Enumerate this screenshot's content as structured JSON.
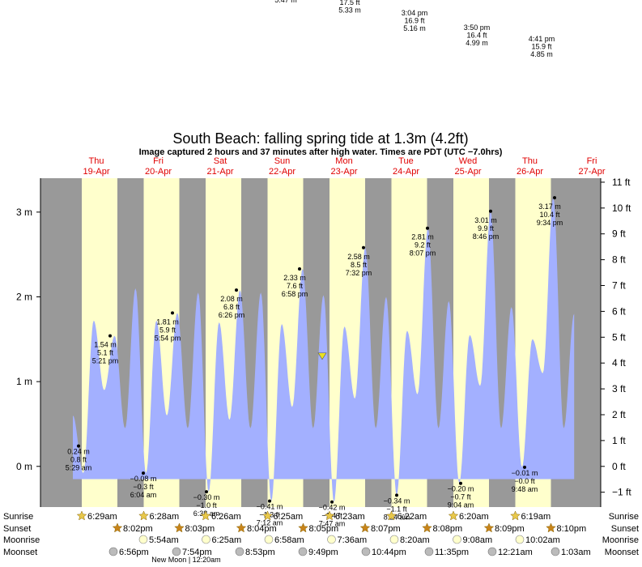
{
  "title": "South Beach: falling  spring tide at 1.3m (4.2ft)",
  "subtitle": "Image captured 2 hours and 37 minutes after high water. Times are PDT (UTC −7.0hrs)",
  "colors": {
    "night": "#999999",
    "day": "#ffffcc",
    "tide_fill": "#a3b0ff",
    "day_label": "#e00000",
    "sun_star": "#e8c84a",
    "sunset_star": "#c8841a",
    "moon_circle": "#ffffcc",
    "moonset_circle": "#bbbbbb",
    "current_marker": "#e8e020"
  },
  "top_overflow": [
    {
      "lines": [
        "5.47 m"
      ]
    },
    {
      "lines": [
        "17.5 ft",
        "5.33 m"
      ]
    },
    {
      "lines": [
        "3:04 pm",
        "16.9 ft",
        "5.16 m"
      ]
    },
    {
      "lines": [
        "3:50 pm",
        "16.4 ft",
        "4.99 m"
      ]
    },
    {
      "lines": [
        "4:41 pm",
        "15.9 ft",
        "4.85 m"
      ]
    }
  ],
  "chart_data": {
    "type": "area",
    "title": "South Beach: falling  spring tide at 1.3m (4.2ft)",
    "ylabel_left_unit": "m",
    "ylabel_right_unit": "ft",
    "ylim_m": [
      -0.48,
      3.4
    ],
    "yticks_m": [
      0,
      1,
      2,
      3
    ],
    "yticks_ft": [
      -1,
      0,
      1,
      2,
      3,
      4,
      5,
      6,
      7,
      8,
      9,
      10,
      11
    ],
    "days": [
      {
        "weekday": "Thu",
        "date": "19-Apr"
      },
      {
        "weekday": "Fri",
        "date": "20-Apr"
      },
      {
        "weekday": "Sat",
        "date": "21-Apr"
      },
      {
        "weekday": "Sun",
        "date": "22-Apr"
      },
      {
        "weekday": "Mon",
        "date": "23-Apr"
      },
      {
        "weekday": "Tue",
        "date": "24-Apr"
      },
      {
        "weekday": "Wed",
        "date": "25-Apr"
      },
      {
        "weekday": "Thu",
        "date": "26-Apr"
      },
      {
        "weekday": "Fri",
        "date": "27-Apr"
      }
    ],
    "series": [
      {
        "values_m": [
          0.6,
          -0.08,
          1.72,
          0.9,
          1.54,
          0.45,
          2.1,
          -0.08,
          1.72,
          0.6,
          1.81,
          0.45,
          2.05,
          -0.3,
          1.7,
          0.55,
          2.08,
          0.45,
          2.05,
          -0.41,
          1.68,
          0.7,
          2.33,
          0.45,
          2.02,
          -0.42,
          1.65,
          0.8,
          2.58,
          0.45,
          2.0,
          -0.34,
          1.6,
          0.85,
          2.81,
          0.45,
          1.95,
          -0.2,
          1.55,
          0.95,
          3.01,
          0.45,
          1.88,
          -0.01,
          1.5,
          1.1,
          3.17,
          0.45,
          1.8
        ]
      }
    ],
    "extremes": [
      {
        "m": "0.24 m",
        "ft": "0.8 ft",
        "time": "5:29 am",
        "value": 0.24,
        "kind": "low"
      },
      {
        "m": "1.54 m",
        "ft": "5.1 ft",
        "time": "5:21 pm",
        "value": 1.54,
        "kind": "high"
      },
      {
        "m": "−0.08 m",
        "ft": "−0.3 ft",
        "time": "6:04 am",
        "value": -0.08,
        "kind": "low"
      },
      {
        "m": "1.81 m",
        "ft": "5.9 ft",
        "time": "5:54 pm",
        "value": 1.81,
        "kind": "high"
      },
      {
        "m": "−0.30 m",
        "ft": "−1.0 ft",
        "time": "6:38 am",
        "value": -0.3,
        "kind": "low"
      },
      {
        "m": "2.08 m",
        "ft": "6.8 ft",
        "time": "6:26 pm",
        "value": 2.08,
        "kind": "high"
      },
      {
        "m": "−0.41 m",
        "ft": "−1.3 ft",
        "time": "7:12 am",
        "value": -0.41,
        "kind": "low"
      },
      {
        "m": "2.33 m",
        "ft": "7.6 ft",
        "time": "6:58 pm",
        "value": 2.33,
        "kind": "high"
      },
      {
        "m": "−0.42 m",
        "ft": "−1.4 ft",
        "time": "7:47 am",
        "value": -0.42,
        "kind": "low"
      },
      {
        "m": "2.58 m",
        "ft": "8.5 ft",
        "time": "7:32 pm",
        "value": 2.58,
        "kind": "high"
      },
      {
        "m": "−0.34 m",
        "ft": "−1.1 ft",
        "time": "8:24 am",
        "value": -0.34,
        "kind": "low"
      },
      {
        "m": "2.81 m",
        "ft": "9.2 ft",
        "time": "8:07 pm",
        "value": 2.81,
        "kind": "high"
      },
      {
        "m": "−0.20 m",
        "ft": "−0.7 ft",
        "time": "9:04 am",
        "value": -0.2,
        "kind": "low"
      },
      {
        "m": "3.01 m",
        "ft": "9.9 ft",
        "time": "8:46 pm",
        "value": 3.01,
        "kind": "high"
      },
      {
        "m": "−0.01 m",
        "ft": "−0.0 ft",
        "time": "9:48 am",
        "value": -0.01,
        "kind": "low"
      },
      {
        "m": "3.17 m",
        "ft": "10.4 ft",
        "time": "9:34 pm",
        "value": 3.17,
        "kind": "high"
      }
    ],
    "current_level_m": 1.3,
    "rows": {
      "sunrise": {
        "label": "Sunrise",
        "times": [
          "6:29am",
          "6:28am",
          "6:26am",
          "6:25am",
          "6:23am",
          "6:22am",
          "6:20am",
          "6:19am"
        ]
      },
      "sunset": {
        "label": "Sunset",
        "times": [
          "8:02pm",
          "8:03pm",
          "8:04pm",
          "8:05pm",
          "8:07pm",
          "8:08pm",
          "8:09pm",
          "8:10pm"
        ]
      },
      "moonrise": {
        "label": "Moonrise",
        "times": [
          "5:54am",
          "6:25am",
          "6:58am",
          "7:36am",
          "8:20am",
          "9:08am",
          "10:02am"
        ]
      },
      "moonset": {
        "label": "Moonset",
        "times": [
          "6:56pm",
          "7:54pm",
          "8:53pm",
          "9:49pm",
          "10:44pm",
          "11:35pm",
          "12:21am",
          "1:03am"
        ]
      }
    },
    "new_moon_note": "New Moon | 12:20am"
  }
}
